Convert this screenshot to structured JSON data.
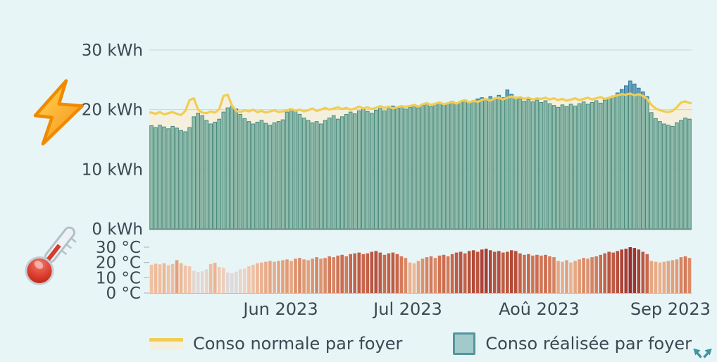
{
  "page": {
    "background": "#e8f5f6",
    "text_color": "#3c4852"
  },
  "icons": {
    "energy": "lightning-icon",
    "temperature": "thermometer-icon",
    "corner": "expand-arrows-icon",
    "corner_color": "#3e96a4"
  },
  "legend": [
    {
      "label": "Conso normale par foyer",
      "type": "line",
      "color": "#f1cd55",
      "fill": "#f4f0dd"
    },
    {
      "label": "Conso réalisée par foyer",
      "type": "box",
      "color": "#a3cacb",
      "border": "#55959d"
    }
  ],
  "chart_data": [
    {
      "type": "bar",
      "title": "",
      "unit": "kWh",
      "frequency": "daily",
      "start_date": "2023-05-01",
      "end_date": "2023-09-05",
      "ylim": [
        0,
        30
      ],
      "grid": true,
      "y_ticks": [
        {
          "value": 30,
          "label": "30 kWh"
        },
        {
          "value": 20,
          "label": "20 kWh"
        },
        {
          "value": 10,
          "label": "10 kWh"
        },
        {
          "value": 0,
          "label": "0 kWh"
        }
      ],
      "x_ticks": [
        {
          "day_index": 31,
          "label": "Jun 2023"
        },
        {
          "day_index": 61,
          "label": "Jul 2023"
        },
        {
          "day_index": 92,
          "label": "Aoû 2023"
        },
        {
          "day_index": 123,
          "label": "Sep 2023"
        }
      ],
      "series": [
        {
          "name": "Conso normale par foyer",
          "type": "line",
          "color": "#f1cd55",
          "area_fill": "#f4f0dd",
          "values": [
            19.5,
            19.3,
            19.6,
            19.2,
            19.4,
            19.6,
            19.3,
            19.1,
            19.8,
            21.6,
            21.9,
            20.0,
            19.5,
            19.4,
            19.7,
            19.5,
            20.1,
            22.3,
            22.5,
            20.7,
            19.8,
            19.6,
            19.9,
            19.7,
            20.0,
            19.6,
            19.8,
            19.5,
            19.7,
            19.9,
            19.6,
            19.7,
            19.9,
            20.1,
            19.8,
            20.0,
            19.7,
            19.9,
            20.2,
            19.8,
            20.0,
            20.3,
            20.0,
            20.2,
            20.4,
            20.1,
            20.3,
            20.0,
            20.2,
            20.5,
            20.2,
            20.4,
            20.1,
            20.3,
            20.6,
            20.3,
            20.5,
            20.2,
            20.4,
            20.6,
            20.5,
            20.6,
            20.8,
            20.5,
            20.9,
            21.1,
            20.8,
            21.0,
            21.2,
            20.9,
            21.1,
            21.3,
            21.0,
            21.4,
            21.6,
            21.2,
            21.5,
            21.3,
            21.6,
            21.8,
            21.5,
            21.9,
            22.0,
            21.7,
            22.0,
            22.2,
            21.9,
            22.1,
            21.8,
            22.0,
            21.7,
            21.9,
            21.8,
            22.0,
            21.7,
            21.9,
            21.6,
            21.8,
            21.5,
            21.7,
            21.9,
            21.6,
            21.8,
            22.0,
            21.7,
            21.9,
            22.1,
            21.8,
            22.0,
            22.2,
            22.4,
            22.6,
            22.5,
            22.7,
            22.4,
            22.6,
            22.3,
            21.8,
            20.8,
            20.2,
            19.9,
            19.7,
            19.6,
            19.8,
            20.4,
            21.2,
            21.4,
            21.1
          ]
        },
        {
          "name": "Conso réalisée par foyer",
          "type": "bar",
          "color": "#8fbcac",
          "border": "#4a8a7c",
          "overflow_color": "#61a3bd",
          "overflow_border": "#38789b",
          "values": [
            17.3,
            17.0,
            17.4,
            17.1,
            16.8,
            17.2,
            16.9,
            16.5,
            16.3,
            17.0,
            18.8,
            19.4,
            19.0,
            18.2,
            17.6,
            17.9,
            18.4,
            19.6,
            20.3,
            20.6,
            20.1,
            19.2,
            18.5,
            18.0,
            17.6,
            17.9,
            18.2,
            17.7,
            17.4,
            17.8,
            18.0,
            18.3,
            19.6,
            19.9,
            19.8,
            19.2,
            18.6,
            18.2,
            17.8,
            18.0,
            17.6,
            18.2,
            18.6,
            19.0,
            18.4,
            18.8,
            19.2,
            19.6,
            19.3,
            19.8,
            20.1,
            19.7,
            19.4,
            19.9,
            20.2,
            19.8,
            20.3,
            20.6,
            20.2,
            20.5,
            20.1,
            20.4,
            20.8,
            20.3,
            20.7,
            21.0,
            20.5,
            20.9,
            21.2,
            20.8,
            21.1,
            21.4,
            21.0,
            21.3,
            21.6,
            21.2,
            21.5,
            21.8,
            22.0,
            21.6,
            22.2,
            21.9,
            22.4,
            22.0,
            23.3,
            22.6,
            22.1,
            21.8,
            21.4,
            21.7,
            21.3,
            21.6,
            21.2,
            21.5,
            21.0,
            20.7,
            20.4,
            20.8,
            20.5,
            20.9,
            20.6,
            21.0,
            21.3,
            20.9,
            21.2,
            21.5,
            21.1,
            21.6,
            21.9,
            22.3,
            22.8,
            23.4,
            24.0,
            24.8,
            24.3,
            23.6,
            23.0,
            22.2,
            19.5,
            18.5,
            18.0,
            17.6,
            17.4,
            17.2,
            17.8,
            18.2,
            18.6,
            18.4
          ]
        }
      ]
    },
    {
      "type": "bar",
      "title": "",
      "unit": "°C",
      "frequency": "daily",
      "start_date": "2023-05-01",
      "end_date": "2023-09-05",
      "ylim": [
        0,
        30
      ],
      "y_ticks": [
        {
          "value": 30,
          "label": "30 °C"
        },
        {
          "value": 20,
          "label": "20 °C"
        },
        {
          "value": 10,
          "label": "10 °C"
        },
        {
          "value": 0,
          "label": "0 °C"
        }
      ],
      "series": [
        {
          "name": "Température",
          "type": "bar",
          "color_stops": [
            [
              13,
              "#dcdadc"
            ],
            [
              16,
              "#eed2c2"
            ],
            [
              19,
              "#f0bd9d"
            ],
            [
              22,
              "#e29a74"
            ],
            [
              25,
              "#cd6c4e"
            ],
            [
              28,
              "#b24a3a"
            ],
            [
              30,
              "#992e2c"
            ]
          ],
          "values": [
            18.5,
            19.2,
            18.8,
            19.5,
            18.2,
            19.0,
            21.5,
            19.5,
            18.0,
            17.5,
            14.5,
            13.8,
            14.2,
            15.5,
            19.0,
            19.8,
            17.0,
            16.5,
            13.5,
            13.0,
            14.0,
            15.5,
            16.0,
            17.5,
            18.5,
            19.5,
            20.0,
            20.5,
            21.0,
            20.5,
            21.0,
            21.5,
            22.0,
            21.0,
            22.5,
            23.0,
            22.0,
            21.5,
            22.5,
            23.5,
            22.5,
            23.0,
            24.0,
            23.5,
            24.5,
            25.0,
            24.0,
            25.5,
            26.0,
            26.5,
            25.5,
            26.0,
            27.0,
            27.5,
            26.5,
            25.0,
            26.0,
            26.5,
            25.5,
            24.0,
            23.0,
            20.0,
            19.5,
            21.0,
            22.5,
            23.5,
            24.0,
            23.0,
            24.5,
            25.0,
            24.0,
            25.5,
            26.5,
            27.0,
            26.0,
            27.5,
            28.0,
            27.0,
            28.5,
            29.0,
            28.0,
            27.0,
            27.5,
            26.5,
            27.0,
            28.0,
            27.5,
            26.0,
            25.0,
            25.5,
            24.5,
            25.0,
            24.5,
            25.0,
            24.0,
            23.5,
            21.0,
            20.5,
            21.5,
            20.0,
            21.0,
            22.0,
            23.0,
            22.5,
            23.5,
            24.0,
            25.0,
            26.0,
            27.0,
            26.5,
            27.5,
            28.5,
            29.0,
            30.0,
            29.5,
            28.5,
            27.0,
            25.5,
            21.0,
            20.5,
            20.0,
            20.5,
            21.0,
            21.5,
            22.0,
            23.5,
            24.0,
            23.0
          ]
        }
      ]
    }
  ]
}
